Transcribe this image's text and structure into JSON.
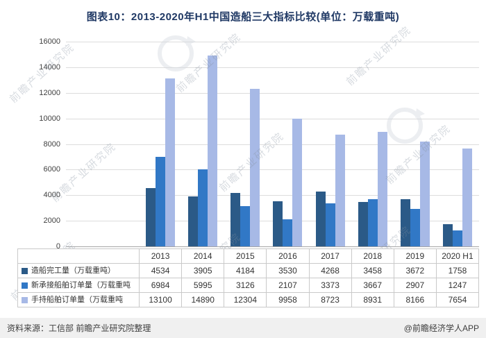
{
  "footer": {
    "source": "资料来源：工信部 前瞻产业研究院整理",
    "brand": "@前瞻经济学人APP"
  },
  "watermark_text": "前瞻产业研究院",
  "colors": {
    "title": "#1f3864",
    "grid": "#dcdcdc",
    "axis_line": "#a6a6a6",
    "axis_text": "#3f3f3f",
    "table_border": "#c9c9c9",
    "footer_bg": "#f0f0f0"
  },
  "chart_data": {
    "type": "bar",
    "title": "图表10：2013-2020年H1中国造船三大指标比较(单位：万载重吨)",
    "categories": [
      "2013",
      "2014",
      "2015",
      "2016",
      "2017",
      "2018",
      "2019",
      "2020 H1"
    ],
    "series": [
      {
        "name": "造船完工量（万载重吨）",
        "color": "#2b5a87",
        "values": [
          4534,
          3905,
          4184,
          3530,
          4268,
          3458,
          3672,
          1758
        ]
      },
      {
        "name": "新承接船舶订单量（万载重吨",
        "color": "#3178c6",
        "values": [
          6984,
          5995,
          3126,
          2107,
          3373,
          3667,
          2907,
          1247
        ]
      },
      {
        "name": "手持船舶订单量（万载重吨",
        "color": "#a7b9e6",
        "values": [
          13100,
          14890,
          12304,
          9958,
          8723,
          8931,
          8166,
          7654
        ]
      }
    ],
    "xlabel": "",
    "ylabel": "",
    "ylim": [
      0,
      16000
    ],
    "y_ticks": [
      0,
      2000,
      4000,
      6000,
      8000,
      10000,
      12000,
      14000,
      16000
    ],
    "grid": true,
    "legend_position": "table-below"
  }
}
